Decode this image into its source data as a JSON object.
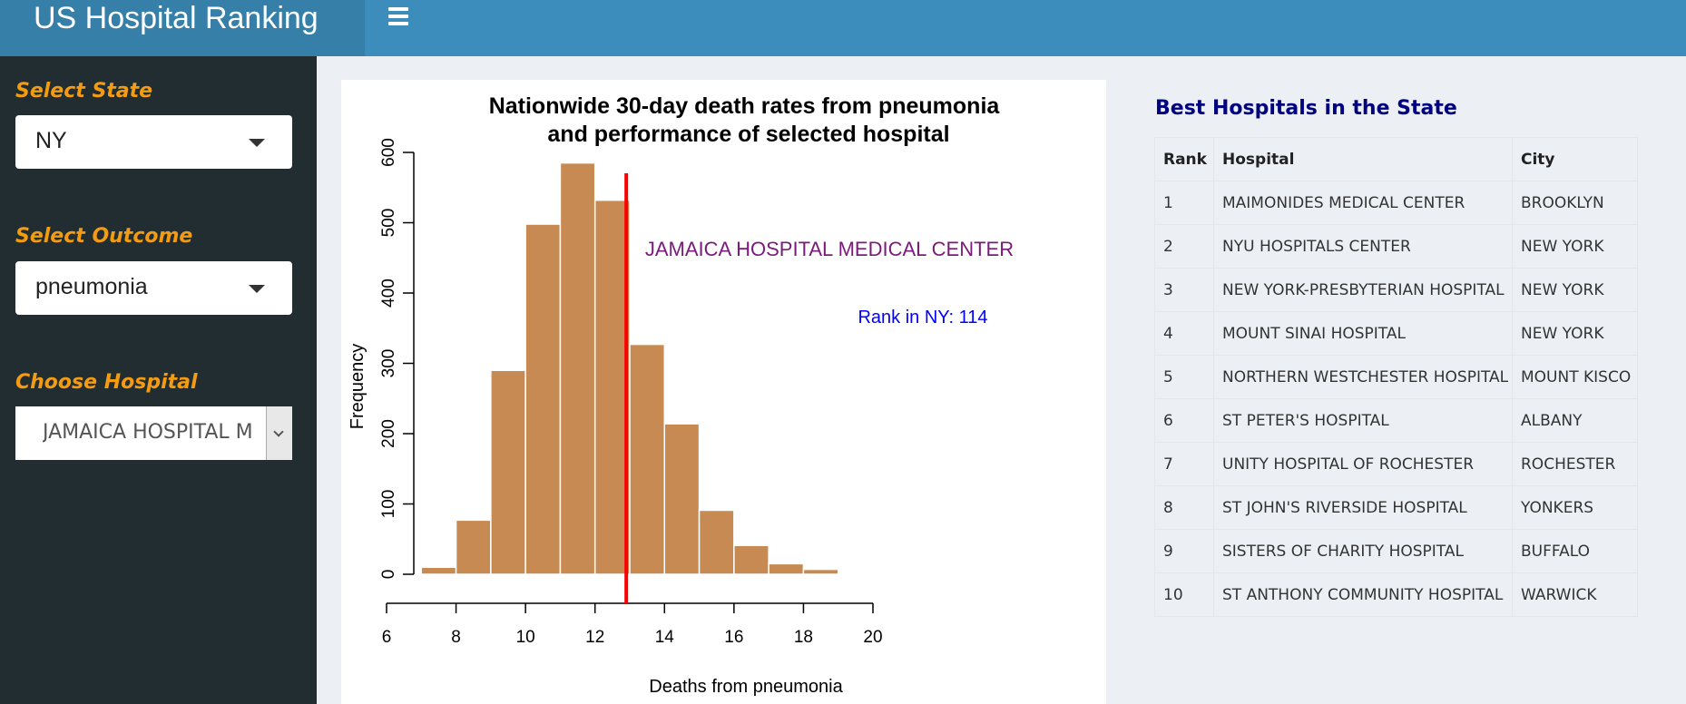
{
  "app": {
    "title": "US Hospital Ranking"
  },
  "sidebar": {
    "state_label": "Select State",
    "state_value": "NY",
    "outcome_label": "Select Outcome",
    "outcome_value": "pneumonia",
    "hospital_label": "Choose Hospital",
    "hospital_value": "JAMAICA HOSPITAL M"
  },
  "chart_data": {
    "type": "bar",
    "title_line1": "Nationwide 30-day death rates from pneumonia",
    "title_line2": "and performance of selected hospital",
    "xlabel": "Deaths from pneumonia",
    "ylabel": "Frequency",
    "xlim": [
      6,
      20
    ],
    "ylim": [
      0,
      600
    ],
    "xticks": [
      6,
      8,
      10,
      12,
      14,
      16,
      18,
      20
    ],
    "yticks": [
      0,
      100,
      200,
      300,
      400,
      500,
      600
    ],
    "bins": [
      {
        "from": 7,
        "to": 8,
        "count": 10
      },
      {
        "from": 8,
        "to": 9,
        "count": 77
      },
      {
        "from": 9,
        "to": 10,
        "count": 290
      },
      {
        "from": 10,
        "to": 11,
        "count": 498
      },
      {
        "from": 11,
        "to": 12,
        "count": 585
      },
      {
        "from": 12,
        "to": 13,
        "count": 532
      },
      {
        "from": 13,
        "to": 14,
        "count": 327
      },
      {
        "from": 14,
        "to": 15,
        "count": 214
      },
      {
        "from": 15,
        "to": 16,
        "count": 91
      },
      {
        "from": 16,
        "to": 17,
        "count": 41
      },
      {
        "from": 17,
        "to": 18,
        "count": 15
      },
      {
        "from": 18,
        "to": 19,
        "count": 7
      }
    ],
    "bar_color": "#c68a52",
    "marker_value": 12.9,
    "marker_color": "#ff0000",
    "hospital_annotation": "JAMAICA HOSPITAL MEDICAL CENTER",
    "hospital_annotation_color": "#7a1a7a",
    "rank_annotation": "Rank in NY: 114",
    "rank_annotation_color": "#0000ff"
  },
  "ranking": {
    "title": "Best Hospitals in the State",
    "columns": [
      "Rank",
      "Hospital",
      "City"
    ],
    "rows": [
      [
        "1",
        "MAIMONIDES MEDICAL CENTER",
        "BROOKLYN"
      ],
      [
        "2",
        "NYU HOSPITALS CENTER",
        "NEW YORK"
      ],
      [
        "3",
        "NEW YORK-PRESBYTERIAN HOSPITAL",
        "NEW YORK"
      ],
      [
        "4",
        "MOUNT SINAI HOSPITAL",
        "NEW YORK"
      ],
      [
        "5",
        "NORTHERN WESTCHESTER HOSPITAL",
        "MOUNT KISCO"
      ],
      [
        "6",
        "ST PETER'S HOSPITAL",
        "ALBANY"
      ],
      [
        "7",
        "UNITY HOSPITAL OF ROCHESTER",
        "ROCHESTER"
      ],
      [
        "8",
        "ST JOHN'S RIVERSIDE HOSPITAL",
        "YONKERS"
      ],
      [
        "9",
        "SISTERS OF CHARITY HOSPITAL",
        "BUFFALO"
      ],
      [
        "10",
        "ST ANTHONY COMMUNITY HOSPITAL",
        "WARWICK"
      ]
    ]
  }
}
